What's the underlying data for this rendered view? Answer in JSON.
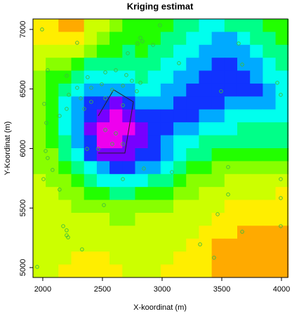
{
  "chart_data": {
    "type": "heatmap",
    "title": "Kriging estimat",
    "x_label": "X-koordinat (m)",
    "y_label": "Y-Koordinat (m)",
    "xlim": [
      1918,
      4053
    ],
    "ylim": [
      4917,
      7088
    ],
    "xticks": [
      2000,
      2500,
      3000,
      3500,
      4000
    ],
    "yticks": [
      5000,
      5500,
      6000,
      6500,
      7000
    ],
    "colors": [
      "#FFAA00",
      "#FFEE00",
      "#CCFF00",
      "#88FF00",
      "#22FF00",
      "#00FF88",
      "#00FFEE",
      "#00AAFF",
      "#1133FF",
      "#7700FF",
      "#EE00EE"
    ],
    "zlim": [
      0,
      10
    ],
    "x": [
      1971,
      2078,
      2185,
      2292,
      2399,
      2506,
      2613,
      2720,
      2827,
      2934,
      3041,
      3148,
      3255,
      3362,
      3469,
      3576,
      3683,
      3790,
      3897,
      4004
    ],
    "y": [
      7034,
      6925,
      6817,
      6708,
      6600,
      6491,
      6383,
      6274,
      6166,
      6057,
      5948,
      5840,
      5731,
      5623,
      5514,
      5406,
      5297,
      5189,
      5080,
      4972
    ],
    "z": [
      [
        1,
        1,
        0,
        0,
        2,
        2,
        3,
        4,
        4,
        4,
        4,
        5,
        5,
        6,
        6,
        5,
        5,
        5,
        4,
        4
      ],
      [
        1,
        1,
        1,
        1,
        2,
        3,
        4,
        4,
        4,
        4,
        5,
        5,
        6,
        6,
        7,
        7,
        6,
        5,
        5,
        4
      ],
      [
        2,
        2,
        2,
        2,
        3,
        4,
        4,
        5,
        4,
        5,
        5,
        6,
        6,
        7,
        7,
        7,
        7,
        6,
        5,
        5
      ],
      [
        2,
        3,
        3,
        4,
        5,
        5,
        5,
        5,
        5,
        5,
        6,
        6,
        7,
        7,
        8,
        8,
        7,
        7,
        6,
        5
      ],
      [
        3,
        4,
        4,
        5,
        6,
        6,
        6,
        6,
        5,
        6,
        6,
        7,
        7,
        8,
        8,
        8,
        8,
        7,
        6,
        6
      ],
      [
        3,
        4,
        5,
        6,
        7,
        7,
        7,
        7,
        6,
        6,
        7,
        7,
        8,
        8,
        8,
        8,
        8,
        8,
        7,
        6
      ],
      [
        3,
        4,
        6,
        7,
        8,
        8,
        9,
        8,
        7,
        7,
        7,
        8,
        8,
        8,
        8,
        7,
        7,
        7,
        7,
        6
      ],
      [
        3,
        4,
        6,
        7,
        8,
        9,
        10,
        9,
        8,
        8,
        8,
        8,
        8,
        7,
        7,
        6,
        6,
        6,
        6,
        6
      ],
      [
        3,
        4,
        6,
        7,
        9,
        10,
        10,
        10,
        9,
        8,
        8,
        7,
        7,
        6,
        6,
        6,
        5,
        5,
        5,
        5
      ],
      [
        3,
        4,
        5,
        7,
        8,
        10,
        10,
        9,
        9,
        8,
        7,
        6,
        6,
        5,
        5,
        5,
        5,
        5,
        5,
        5
      ],
      [
        3,
        3,
        5,
        6,
        8,
        9,
        9,
        9,
        8,
        8,
        7,
        6,
        5,
        5,
        4,
        4,
        4,
        4,
        4,
        4
      ],
      [
        3,
        3,
        4,
        5,
        6,
        7,
        8,
        8,
        7,
        7,
        6,
        5,
        4,
        4,
        3,
        3,
        3,
        3,
        3,
        3
      ],
      [
        2,
        3,
        3,
        4,
        5,
        6,
        6,
        6,
        6,
        5,
        5,
        4,
        3,
        3,
        3,
        2,
        2,
        2,
        2,
        2
      ],
      [
        2,
        2,
        3,
        3,
        4,
        4,
        5,
        5,
        4,
        4,
        4,
        3,
        3,
        2,
        2,
        2,
        2,
        2,
        2,
        1
      ],
      [
        2,
        2,
        2,
        3,
        3,
        3,
        3,
        3,
        3,
        3,
        3,
        2,
        2,
        2,
        2,
        1,
        1,
        1,
        1,
        1
      ],
      [
        2,
        2,
        2,
        2,
        2,
        2,
        3,
        3,
        2,
        2,
        2,
        2,
        2,
        2,
        1,
        1,
        1,
        1,
        1,
        1
      ],
      [
        2,
        2,
        2,
        2,
        2,
        2,
        2,
        2,
        2,
        2,
        2,
        2,
        2,
        1,
        1,
        1,
        0,
        0,
        0,
        0
      ],
      [
        2,
        2,
        2,
        2,
        2,
        2,
        2,
        2,
        2,
        2,
        2,
        2,
        1,
        1,
        0,
        0,
        0,
        0,
        0,
        0
      ],
      [
        2,
        2,
        2,
        1,
        1,
        1,
        2,
        2,
        2,
        2,
        2,
        1,
        1,
        1,
        0,
        0,
        0,
        0,
        0,
        0
      ],
      [
        2,
        2,
        1,
        1,
        1,
        1,
        1,
        2,
        2,
        2,
        1,
        1,
        1,
        1,
        0,
        0,
        0,
        0,
        0,
        0
      ]
    ],
    "points": {
      "color": "#3DBB3D",
      "x": [
        1994,
        2982,
        2288,
        2818,
        2835,
        2794,
        2924,
        2712,
        3141,
        3641,
        3671,
        2041,
        2200,
        2376,
        2524,
        2612,
        2700,
        2747,
        2818,
        2288,
        2406,
        2494,
        2582,
        2671,
        2218,
        2318,
        2406,
        2524,
        2347,
        2200,
        2012,
        2141,
        2029,
        2671,
        2788,
        3494,
        3965,
        3994,
        2524,
        2612,
        2582,
        2671,
        2465,
        2371,
        2024,
        2041,
        2847,
        3082,
        3553,
        2082,
        2006,
        2671,
        3994,
        2141,
        2512,
        3553,
        3994,
        3465,
        2171,
        2200,
        2200,
        2212,
        3671,
        3994,
        3318,
        2329,
        3435,
        1953
      ],
      "y": [
        7000,
        7035,
        6888,
        6929,
        6900,
        6882,
        6870,
        6800,
        6717,
        6882,
        6705,
        6658,
        6611,
        6599,
        6640,
        6658,
        6617,
        6569,
        6552,
        6510,
        6510,
        6540,
        6493,
        6528,
        6451,
        6422,
        6392,
        6422,
        6333,
        6333,
        6375,
        6274,
        6215,
        6363,
        6481,
        6481,
        6552,
        6451,
        6156,
        6127,
        6038,
        6038,
        5997,
        5997,
        5979,
        5920,
        5832,
        5802,
        5844,
        5820,
        5743,
        5743,
        5743,
        5655,
        5525,
        5614,
        5584,
        5448,
        5348,
        5313,
        5271,
        5254,
        5301,
        5348,
        5195,
        5153,
        5083,
        5006
      ]
    },
    "polygon": {
      "color": "#222222",
      "x": [
        2465,
        2594,
        2759,
        2688,
        2465
      ],
      "y": [
        6274,
        6493,
        6392,
        5962,
        5962
      ]
    }
  }
}
